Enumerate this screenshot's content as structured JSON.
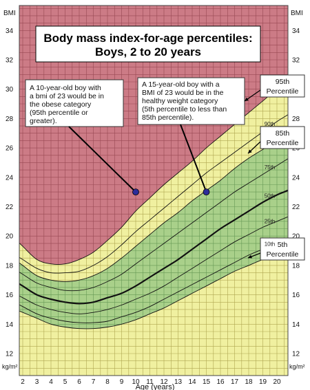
{
  "chart_data": {
    "type": "line",
    "title": "Body mass index-for-age percentiles:",
    "subtitle": "Boys, 2 to 20 years",
    "xlabel": "Age (years)",
    "ylabel_top": "BMI",
    "unit_label": "kg/m²",
    "xlim": [
      2,
      20.7
    ],
    "ylim": [
      10.5,
      35.7
    ],
    "x_ticks": [
      2,
      3,
      4,
      5,
      6,
      7,
      8,
      9,
      10,
      11,
      12,
      13,
      14,
      15,
      16,
      17,
      18,
      19,
      20
    ],
    "y_ticks": [
      12,
      14,
      16,
      18,
      20,
      22,
      24,
      26,
      28,
      30,
      32,
      34
    ],
    "ages": [
      2,
      3,
      4,
      5,
      6,
      7,
      8,
      9,
      10,
      11,
      12,
      13,
      14,
      15,
      16,
      17,
      18,
      19,
      20,
      20.5
    ],
    "series": [
      {
        "name": "5th",
        "values": [
          14.8,
          14.4,
          14.0,
          13.8,
          13.7,
          13.7,
          13.8,
          14.0,
          14.3,
          14.7,
          15.1,
          15.6,
          16.1,
          16.6,
          17.1,
          17.6,
          18.0,
          18.4,
          18.7,
          18.8
        ]
      },
      {
        "name": "10th",
        "values": [
          15.2,
          14.7,
          14.4,
          14.2,
          14.1,
          14.1,
          14.2,
          14.5,
          14.8,
          15.2,
          15.7,
          16.2,
          16.7,
          17.2,
          17.7,
          18.2,
          18.7,
          19.1,
          19.4,
          19.6
        ]
      },
      {
        "name": "25th",
        "values": [
          15.8,
          15.3,
          15.0,
          14.8,
          14.7,
          14.8,
          15.0,
          15.3,
          15.7,
          16.1,
          16.6,
          17.2,
          17.8,
          18.4,
          19.0,
          19.6,
          20.1,
          20.6,
          21.0,
          21.2
        ]
      },
      {
        "name": "50th",
        "values": [
          16.6,
          16.0,
          15.7,
          15.5,
          15.4,
          15.5,
          15.8,
          16.1,
          16.6,
          17.2,
          17.8,
          18.4,
          19.1,
          19.8,
          20.5,
          21.1,
          21.7,
          22.3,
          22.8,
          23.0
        ]
      },
      {
        "name": "75th",
        "values": [
          17.4,
          16.8,
          16.5,
          16.3,
          16.3,
          16.5,
          16.9,
          17.4,
          18.1,
          18.8,
          19.5,
          20.2,
          20.9,
          21.6,
          22.3,
          23.0,
          23.6,
          24.2,
          24.8,
          25.1
        ]
      },
      {
        "name": "85th",
        "values": [
          18.0,
          17.3,
          17.0,
          16.9,
          17.0,
          17.3,
          17.8,
          18.5,
          19.3,
          20.1,
          20.9,
          21.6,
          22.4,
          23.1,
          23.8,
          24.6,
          25.3,
          25.9,
          26.5,
          26.8
        ]
      },
      {
        "name": "90th",
        "values": [
          18.4,
          17.8,
          17.5,
          17.5,
          17.6,
          18.0,
          18.6,
          19.4,
          20.3,
          21.1,
          21.9,
          22.7,
          23.5,
          24.3,
          25.0,
          25.7,
          26.4,
          27.1,
          27.8,
          28.1
        ]
      },
      {
        "name": "95th",
        "values": [
          19.3,
          18.4,
          18.1,
          18.1,
          18.4,
          18.9,
          19.7,
          20.6,
          21.7,
          22.6,
          23.5,
          24.3,
          25.1,
          26.0,
          26.8,
          27.6,
          28.4,
          29.2,
          30.0,
          30.3
        ]
      }
    ],
    "points": [
      {
        "x": 10,
        "y": 23
      },
      {
        "x": 15,
        "y": 23
      }
    ],
    "colors": {
      "obese": "#cc7b86",
      "obese_grid": "#6e1f2a",
      "healthy": "#a9d08a",
      "healthy_grid": "#2f6b2a",
      "overweight": "#f0f0a0",
      "overweight_grid": "#7a6a10",
      "median_line": "#111111",
      "point_fill": "#2d2d9a"
    }
  },
  "title_box": {
    "line1": "Body mass index-for-age percentiles:",
    "line2": "Boys, 2 to 20 years"
  },
  "callouts": {
    "obese": [
      "A 10-year-old boy with",
      "a bmi of 23 would be in",
      "the obese category",
      "(95th percentile or",
      "greater)."
    ],
    "healthy": [
      "A 15-year-old boy with a",
      "BMI of 23 would be in the",
      "healthy weight category",
      "(5th percentile to less than",
      "85th percentile)."
    ]
  },
  "legend_boxes": {
    "p95": [
      "95th",
      "Percentile"
    ],
    "p85": [
      "85th",
      "Percentile"
    ],
    "p5": [
      "5th",
      "Percentile"
    ]
  },
  "curve_labels": [
    "90th",
    "75th",
    "50th",
    "25th",
    "10th"
  ]
}
